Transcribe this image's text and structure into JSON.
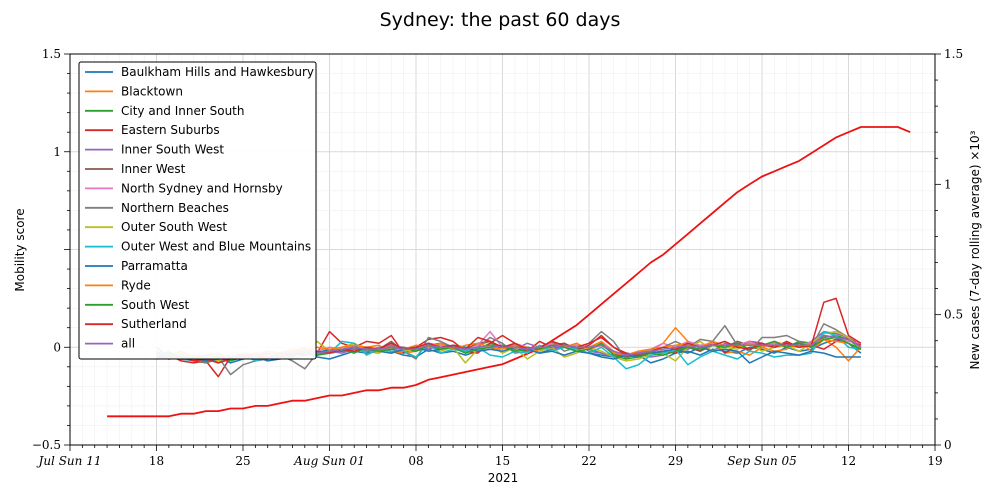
{
  "chart_data": {
    "type": "line",
    "title": "Sydney: the past 60 days",
    "xlabel": "2021",
    "ylabel_left": "Mobility score",
    "ylabel_right": "New cases (7-day rolling average) ×10³",
    "ylim_left": [
      -0.5,
      1.5
    ],
    "ylim_right": [
      0,
      1.5
    ],
    "left_ticks": [
      "−0.5",
      "0",
      "1",
      "1.5"
    ],
    "right_ticks": [
      "0",
      "0.5",
      "1",
      "1.5"
    ],
    "x_ticks": [
      "Jul Sun 11",
      "18",
      "25",
      "Aug Sun 01",
      "08",
      "15",
      "22",
      "29",
      "Sep Sun 05",
      "12",
      "19"
    ],
    "x_start": "2021-07-11",
    "x_end": "2021-09-19",
    "grid": true,
    "legend_position": "top-left",
    "legend": [
      {
        "name": "Baulkham Hills and Hawkesbury",
        "color": "#1f77b4"
      },
      {
        "name": "Blacktown",
        "color": "#ff7f0e"
      },
      {
        "name": "City and Inner South",
        "color": "#2ca02c"
      },
      {
        "name": "Eastern Suburbs",
        "color": "#d62728"
      },
      {
        "name": "Inner South West",
        "color": "#9467bd"
      },
      {
        "name": "Inner West",
        "color": "#8c564b"
      },
      {
        "name": "North Sydney and Hornsby",
        "color": "#e377c2"
      },
      {
        "name": "Northern Beaches",
        "color": "#7f7f7f"
      },
      {
        "name": "Outer South West",
        "color": "#bcbd22"
      },
      {
        "name": "Outer West and Blue Mountains",
        "color": "#17becf"
      },
      {
        "name": "Parramatta",
        "color": "#1f77b4"
      },
      {
        "name": "Ryde",
        "color": "#ff7f0e"
      },
      {
        "name": "South West",
        "color": "#2ca02c"
      },
      {
        "name": "Sutherland",
        "color": "#d62728"
      },
      {
        "name": "all",
        "color": "#9467bd"
      }
    ],
    "cases_series": {
      "name": "New cases (7-day rolling average)",
      "color": "#ee1111",
      "x_start": "2021-07-14",
      "values": [
        0.11,
        0.11,
        0.11,
        0.11,
        0.11,
        0.11,
        0.12,
        0.12,
        0.13,
        0.13,
        0.14,
        0.14,
        0.15,
        0.15,
        0.16,
        0.17,
        0.17,
        0.18,
        0.19,
        0.19,
        0.2,
        0.21,
        0.21,
        0.22,
        0.22,
        0.23,
        0.25,
        0.26,
        0.27,
        0.28,
        0.29,
        0.3,
        0.31,
        0.33,
        0.35,
        0.37,
        0.4,
        0.43,
        0.46,
        0.5,
        0.54,
        0.58,
        0.62,
        0.66,
        0.7,
        0.73,
        0.77,
        0.81,
        0.85,
        0.89,
        0.93,
        0.97,
        1.0,
        1.03,
        1.05,
        1.07,
        1.09,
        1.12,
        1.15,
        1.18,
        1.2,
        1.22,
        1.22,
        1.22,
        1.22,
        1.2
      ]
    },
    "mobility_x_start": "2021-07-18",
    "mobility_series": [
      {
        "name": "Baulkham Hills and Hawkesbury",
        "color": "#1f77b4",
        "values": [
          0.0,
          -0.05,
          -0.04,
          -0.06,
          -0.07,
          -0.05,
          -0.08,
          -0.06,
          -0.05,
          -0.07,
          -0.06,
          -0.04,
          -0.03,
          -0.05,
          -0.06,
          -0.04,
          -0.02,
          -0.03,
          -0.01,
          -0.02,
          -0.04,
          -0.05,
          -0.01,
          -0.03,
          -0.02,
          -0.04,
          -0.02,
          -0.01,
          0.0,
          -0.02,
          -0.01,
          -0.03,
          -0.01,
          0.0,
          -0.02,
          -0.03,
          -0.04,
          -0.05,
          -0.03,
          -0.04,
          -0.08,
          -0.06,
          -0.03,
          -0.02,
          -0.04,
          -0.01,
          -0.02,
          -0.03,
          0.0,
          -0.01,
          -0.03,
          0.0,
          -0.02,
          -0.01,
          0.02,
          0.04,
          0.02,
          -0.03
        ]
      },
      {
        "name": "Blacktown",
        "color": "#ff7f0e",
        "values": [
          -0.03,
          -0.04,
          -0.02,
          -0.05,
          -0.04,
          -0.03,
          -0.06,
          -0.04,
          -0.03,
          -0.05,
          -0.04,
          -0.02,
          0.0,
          -0.04,
          -0.03,
          -0.02,
          -0.01,
          0.0,
          0.01,
          -0.02,
          -0.03,
          -0.02,
          0.02,
          -0.01,
          0.0,
          -0.02,
          0.01,
          0.03,
          -0.03,
          0.0,
          -0.01,
          -0.02,
          0.02,
          0.01,
          -0.01,
          0.0,
          0.03,
          -0.02,
          -0.05,
          -0.04,
          -0.02,
          0.02,
          0.1,
          0.03,
          0.0,
          0.02,
          -0.03,
          -0.02,
          -0.04,
          0.0,
          -0.02,
          -0.01,
          0.03,
          -0.02,
          0.04,
          0.0,
          -0.07,
          0.0
        ]
      },
      {
        "name": "City and Inner South",
        "color": "#2ca02c",
        "values": [
          -0.02,
          -0.06,
          -0.05,
          -0.07,
          -0.08,
          -0.06,
          -0.04,
          -0.05,
          -0.03,
          -0.04,
          -0.05,
          -0.02,
          -0.03,
          -0.04,
          -0.03,
          -0.02,
          -0.01,
          0.0,
          -0.02,
          -0.03,
          -0.01,
          -0.02,
          0.0,
          -0.01,
          0.01,
          0.0,
          -0.01,
          0.02,
          0.0,
          -0.01,
          -0.02,
          0.0,
          -0.01,
          0.01,
          0.0,
          -0.01,
          -0.03,
          -0.04,
          -0.03,
          -0.05,
          -0.02,
          -0.03,
          -0.01,
          0.0,
          -0.02,
          0.01,
          0.0,
          0.02,
          0.01,
          0.0,
          0.02,
          0.0,
          0.03,
          0.02,
          0.05,
          0.06,
          0.04,
          -0.01
        ]
      },
      {
        "name": "Eastern Suburbs",
        "color": "#d62728",
        "values": [
          -0.06,
          -0.04,
          -0.07,
          -0.08,
          -0.07,
          -0.15,
          -0.05,
          -0.06,
          -0.04,
          -0.03,
          -0.05,
          -0.02,
          -0.01,
          -0.03,
          0.08,
          0.02,
          0.0,
          0.03,
          0.02,
          0.06,
          -0.03,
          0.0,
          0.04,
          0.05,
          0.03,
          -0.02,
          -0.03,
          0.02,
          0.06,
          0.02,
          -0.02,
          0.03,
          0.0,
          0.02,
          -0.01,
          0.01,
          0.06,
          0.0,
          -0.03,
          -0.04,
          -0.03,
          -0.02,
          -0.03,
          0.0,
          -0.02,
          0.03,
          -0.03,
          0.01,
          0.03,
          0.02,
          0.0,
          0.03,
          0.0,
          0.01,
          -0.01,
          0.03,
          0.05,
          0.01
        ]
      },
      {
        "name": "Inner South West",
        "color": "#9467bd",
        "values": [
          -0.05,
          -0.04,
          -0.06,
          -0.05,
          -0.07,
          -0.06,
          -0.05,
          -0.04,
          -0.06,
          -0.05,
          -0.03,
          -0.04,
          -0.02,
          -0.03,
          -0.02,
          -0.03,
          -0.01,
          -0.02,
          0.0,
          -0.01,
          -0.02,
          0.0,
          -0.01,
          0.01,
          0.0,
          -0.02,
          -0.01,
          0.0,
          0.01,
          -0.01,
          0.02,
          0.0,
          -0.01,
          0.0,
          0.02,
          -0.02,
          -0.03,
          -0.05,
          -0.04,
          -0.03,
          -0.05,
          -0.04,
          -0.02,
          -0.01,
          0.01,
          -0.02,
          0.02,
          0.0,
          0.03,
          0.01,
          0.0,
          0.02,
          0.0,
          0.03,
          0.08,
          0.07,
          0.05,
          0.0
        ]
      },
      {
        "name": "Inner West",
        "color": "#8c564b",
        "values": [
          -0.04,
          -0.05,
          -0.06,
          -0.04,
          -0.06,
          -0.07,
          -0.05,
          -0.06,
          -0.04,
          -0.05,
          -0.03,
          -0.04,
          -0.02,
          -0.03,
          -0.01,
          -0.02,
          0.0,
          -0.02,
          -0.01,
          0.03,
          -0.02,
          -0.01,
          0.01,
          0.02,
          0.0,
          -0.01,
          0.02,
          0.03,
          0.0,
          0.01,
          -0.01,
          0.0,
          0.01,
          0.02,
          -0.01,
          0.0,
          0.01,
          -0.03,
          -0.05,
          -0.04,
          -0.03,
          -0.02,
          -0.01,
          0.01,
          -0.02,
          0.02,
          0.0,
          0.03,
          0.01,
          0.02,
          0.0,
          0.01,
          0.02,
          0.0,
          0.06,
          0.05,
          0.04,
          0.0
        ]
      },
      {
        "name": "North Sydney and Hornsby",
        "color": "#e377c2",
        "values": [
          -0.03,
          -0.04,
          -0.05,
          -0.04,
          -0.06,
          -0.05,
          -0.04,
          -0.05,
          -0.03,
          -0.04,
          -0.03,
          -0.02,
          -0.01,
          -0.02,
          0.0,
          -0.01,
          0.01,
          0.0,
          -0.01,
          0.01,
          0.0,
          -0.01,
          0.02,
          0.01,
          0.0,
          -0.02,
          0.01,
          0.08,
          0.0,
          0.02,
          0.0,
          -0.01,
          0.02,
          0.0,
          0.01,
          -0.01,
          0.02,
          -0.02,
          -0.04,
          -0.03,
          -0.01,
          0.02,
          0.0,
          0.03,
          0.01,
          0.02,
          0.0,
          0.01,
          0.03,
          0.0,
          0.02,
          0.01,
          0.0,
          0.03,
          0.06,
          0.05,
          0.03,
          0.02
        ]
      },
      {
        "name": "Northern Beaches",
        "color": "#7f7f7f",
        "values": [
          -0.02,
          -0.05,
          -0.04,
          -0.06,
          -0.08,
          -0.05,
          -0.14,
          -0.09,
          -0.07,
          -0.06,
          -0.04,
          -0.07,
          -0.11,
          -0.03,
          -0.01,
          -0.02,
          0.0,
          -0.02,
          -0.03,
          0.01,
          -0.02,
          -0.06,
          0.05,
          0.03,
          0.0,
          -0.03,
          0.0,
          0.05,
          0.02,
          -0.03,
          -0.02,
          0.0,
          0.03,
          -0.02,
          0.0,
          0.02,
          0.08,
          0.03,
          -0.06,
          -0.02,
          -0.01,
          0.0,
          0.03,
          0.0,
          0.04,
          0.03,
          0.11,
          0.01,
          -0.02,
          0.05,
          0.05,
          0.06,
          0.03,
          0.0,
          0.12,
          0.09,
          0.05,
          0.0
        ]
      },
      {
        "name": "Outer South West",
        "color": "#bcbd22",
        "values": [
          -0.04,
          -0.05,
          -0.03,
          -0.06,
          -0.05,
          -0.07,
          -0.04,
          -0.06,
          -0.05,
          -0.04,
          -0.06,
          -0.03,
          -0.04,
          0.03,
          -0.02,
          0.0,
          0.02,
          -0.01,
          -0.03,
          0.0,
          -0.02,
          -0.01,
          0.01,
          -0.02,
          0.0,
          -0.08,
          -0.01,
          0.01,
          -0.03,
          0.0,
          -0.06,
          -0.02,
          0.0,
          -0.05,
          -0.03,
          0.0,
          -0.02,
          -0.05,
          -0.07,
          -0.06,
          -0.04,
          -0.03,
          -0.07,
          0.0,
          0.03,
          -0.02,
          0.0,
          -0.01,
          0.02,
          -0.02,
          0.0,
          0.01,
          -0.02,
          0.02,
          0.07,
          0.08,
          0.05,
          -0.01
        ]
      },
      {
        "name": "Outer West and Blue Mountains",
        "color": "#17becf",
        "values": [
          -0.05,
          -0.02,
          -0.06,
          -0.07,
          -0.05,
          -0.08,
          -0.06,
          -0.04,
          -0.07,
          -0.05,
          -0.03,
          -0.06,
          -0.04,
          -0.02,
          -0.03,
          0.03,
          0.02,
          -0.04,
          -0.01,
          -0.02,
          -0.02,
          -0.05,
          0.02,
          -0.03,
          -0.01,
          -0.02,
          0.0,
          -0.04,
          -0.05,
          -0.02,
          -0.03,
          0.01,
          -0.02,
          0.0,
          -0.01,
          -0.03,
          0.0,
          -0.05,
          -0.11,
          -0.09,
          -0.04,
          -0.03,
          -0.01,
          -0.09,
          -0.05,
          -0.02,
          -0.04,
          -0.06,
          -0.02,
          -0.03,
          -0.05,
          -0.04,
          -0.04,
          -0.03,
          0.08,
          0.06,
          0.0,
          -0.01
        ]
      },
      {
        "name": "Parramatta",
        "color": "#1f77b4",
        "values": [
          -0.04,
          -0.05,
          -0.06,
          -0.05,
          -0.07,
          -0.06,
          -0.05,
          -0.04,
          -0.06,
          -0.05,
          -0.04,
          -0.03,
          -0.02,
          -0.03,
          -0.01,
          -0.02,
          0.0,
          -0.01,
          -0.02,
          -0.03,
          -0.01,
          0.0,
          -0.02,
          -0.01,
          0.01,
          0.0,
          -0.02,
          -0.01,
          -0.02,
          0.0,
          -0.01,
          -0.03,
          -0.02,
          -0.04,
          -0.02,
          -0.03,
          -0.05,
          -0.06,
          -0.04,
          -0.05,
          -0.03,
          -0.02,
          -0.01,
          -0.03,
          0.0,
          -0.02,
          -0.01,
          -0.02,
          -0.08,
          -0.05,
          -0.02,
          -0.03,
          -0.04,
          -0.02,
          -0.03,
          -0.05,
          -0.05,
          -0.05
        ]
      },
      {
        "name": "Ryde",
        "color": "#ff7f0e",
        "values": [
          -0.03,
          -0.04,
          -0.05,
          -0.04,
          -0.06,
          -0.04,
          -0.05,
          -0.03,
          -0.04,
          -0.02,
          -0.03,
          -0.01,
          -0.02,
          0.0,
          -0.01,
          0.0,
          0.01,
          0.0,
          -0.02,
          0.0,
          -0.01,
          0.01,
          0.0,
          0.02,
          -0.01,
          0.01,
          0.02,
          0.0,
          -0.01,
          0.01,
          0.0,
          -0.01,
          0.01,
          0.0,
          0.02,
          -0.01,
          0.01,
          -0.03,
          -0.04,
          -0.02,
          -0.01,
          0.0,
          0.01,
          0.02,
          0.0,
          0.03,
          0.01,
          0.0,
          0.02,
          0.0,
          0.03,
          0.01,
          0.0,
          0.02,
          0.04,
          0.03,
          0.02,
          -0.01
        ]
      },
      {
        "name": "South West",
        "color": "#2ca02c",
        "values": [
          -0.04,
          -0.03,
          -0.05,
          -0.06,
          -0.04,
          -0.05,
          -0.07,
          -0.05,
          -0.04,
          -0.06,
          -0.03,
          -0.05,
          -0.02,
          -0.04,
          -0.02,
          -0.01,
          -0.03,
          0.0,
          -0.02,
          -0.01,
          0.0,
          -0.02,
          0.01,
          -0.01,
          0.0,
          -0.03,
          -0.01,
          0.0,
          0.01,
          -0.02,
          0.0,
          -0.01,
          0.01,
          0.0,
          -0.02,
          -0.01,
          0.02,
          -0.04,
          -0.06,
          -0.05,
          -0.03,
          -0.04,
          -0.02,
          0.0,
          -0.01,
          0.01,
          0.0,
          0.02,
          -0.01,
          0.01,
          0.03,
          0.0,
          0.02,
          0.0,
          0.04,
          0.05,
          0.02,
          -0.01
        ]
      },
      {
        "name": "Sutherland",
        "color": "#d62728",
        "values": [
          -0.05,
          -0.06,
          -0.05,
          -0.07,
          -0.06,
          -0.08,
          -0.06,
          -0.05,
          -0.04,
          -0.06,
          -0.05,
          -0.03,
          -0.04,
          -0.02,
          -0.03,
          -0.01,
          -0.02,
          0.0,
          -0.01,
          0.02,
          -0.01,
          0.0,
          0.02,
          0.0,
          0.01,
          -0.01,
          0.05,
          0.03,
          0.0,
          0.02,
          -0.01,
          0.0,
          0.03,
          0.01,
          0.0,
          0.02,
          0.05,
          0.0,
          -0.04,
          -0.03,
          -0.02,
          0.0,
          -0.01,
          0.02,
          0.0,
          0.01,
          0.03,
          0.0,
          -0.01,
          0.02,
          0.0,
          0.02,
          0.0,
          0.01,
          0.23,
          0.25,
          0.06,
          0.02
        ]
      },
      {
        "name": "all",
        "color": "#9467bd",
        "values": [
          -0.03,
          -0.04,
          -0.05,
          -0.05,
          -0.06,
          -0.06,
          -0.05,
          -0.05,
          -0.04,
          -0.05,
          -0.04,
          -0.03,
          -0.02,
          -0.03,
          -0.02,
          -0.01,
          0.0,
          -0.01,
          -0.01,
          0.0,
          -0.01,
          -0.01,
          0.01,
          0.0,
          0.0,
          -0.01,
          0.0,
          0.01,
          0.0,
          0.0,
          -0.01,
          0.0,
          0.0,
          0.01,
          0.0,
          0.0,
          0.01,
          -0.02,
          -0.04,
          -0.03,
          -0.02,
          -0.01,
          0.0,
          0.01,
          0.0,
          0.01,
          0.01,
          0.01,
          0.01,
          0.01,
          0.01,
          0.01,
          0.01,
          0.01,
          0.06,
          0.05,
          0.04,
          0.0
        ]
      }
    ]
  }
}
